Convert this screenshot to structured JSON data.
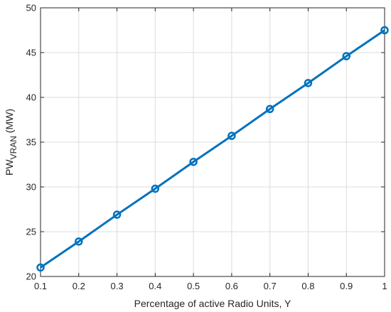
{
  "chart_data": {
    "type": "line",
    "title": "",
    "xlabel": "Percentage of active Radio Units, Y",
    "ylabel": {
      "base": "PW",
      "subscript": "VRAN",
      "suffix": " (MW)"
    },
    "xlim": [
      0.1,
      1
    ],
    "ylim": [
      20,
      50
    ],
    "xticks": [
      0.1,
      0.2,
      0.3,
      0.4,
      0.5,
      0.6,
      0.7,
      0.8,
      0.9,
      1
    ],
    "xtick_labels": [
      "0.1",
      "0.2",
      "0.3",
      "0.4",
      "0.5",
      "0.6",
      "0.7",
      "0.8",
      "0.9",
      "1"
    ],
    "yticks": [
      20,
      25,
      30,
      35,
      40,
      45,
      50
    ],
    "ytick_labels": [
      "20",
      "25",
      "30",
      "35",
      "40",
      "45",
      "50"
    ],
    "grid": true,
    "legend": "none",
    "series": [
      {
        "color": "#0072bd",
        "marker": "circle",
        "x": [
          0.1,
          0.2,
          0.3,
          0.4,
          0.5,
          0.6,
          0.7,
          0.8,
          0.9,
          1.0
        ],
        "y": [
          21.0,
          23.9,
          26.9,
          29.8,
          32.8,
          35.7,
          38.7,
          41.6,
          44.6,
          47.5
        ]
      }
    ]
  }
}
